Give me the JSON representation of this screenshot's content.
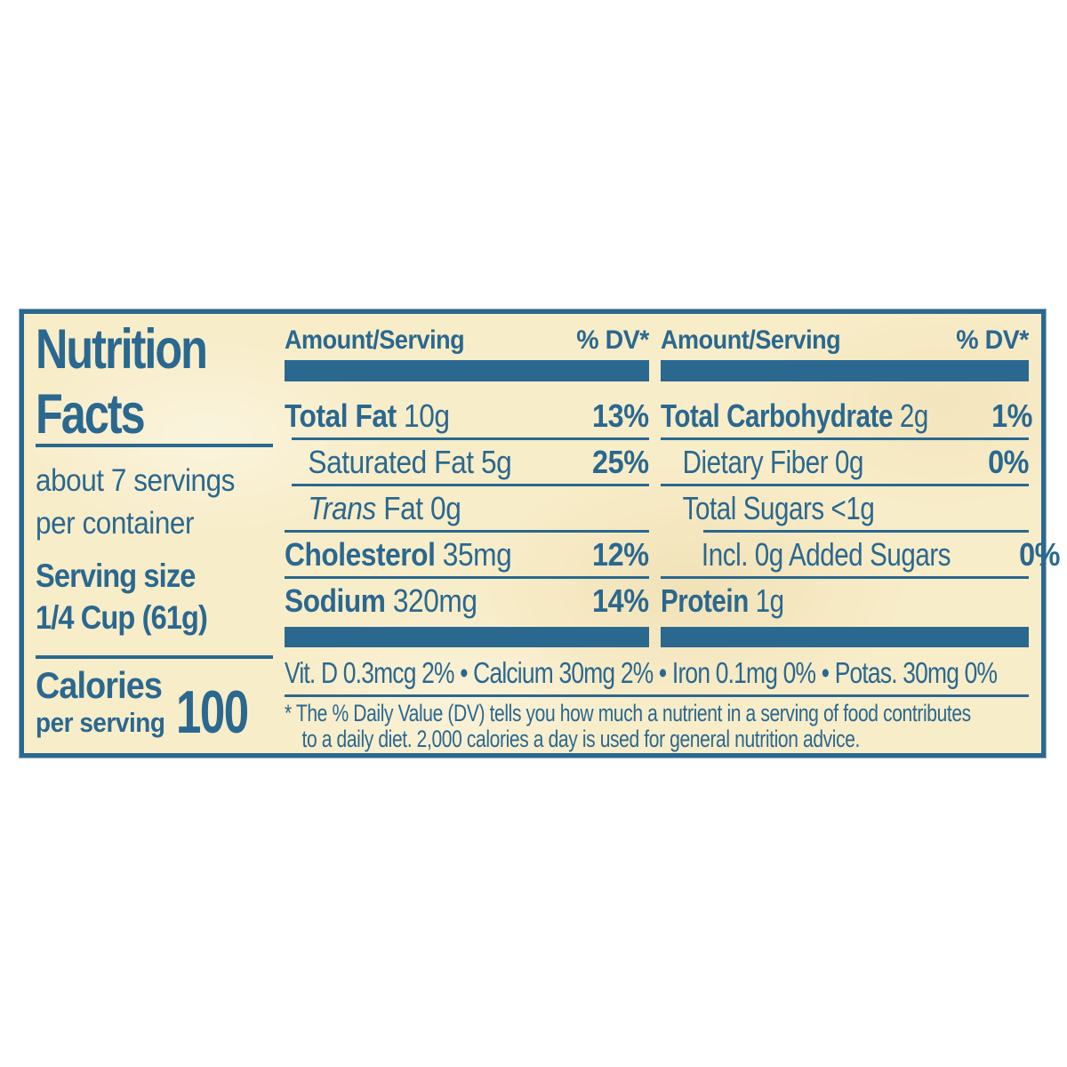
{
  "colors": {
    "ink": "#2a6890",
    "cream": "#f8edc9",
    "page_background": "#ffffff"
  },
  "nutrition_label": {
    "title": {
      "line1": "Nutrition",
      "line2": "Facts"
    },
    "servings": {
      "line1": "about 7 servings",
      "line2": "per container"
    },
    "serving_size": {
      "line1": "Serving size",
      "line2": "1/4 Cup (61g)"
    },
    "calories": {
      "label": "Calories",
      "sublabel": "per serving",
      "value": "100"
    },
    "column_header": {
      "amount": "Amount/Serving",
      "dv": "% DV*"
    },
    "mid_rows": [
      {
        "bold": "Total Fat",
        "rest": " 10g",
        "dv": "13%"
      },
      {
        "bold": "",
        "rest": "Saturated Fat 5g",
        "dv": "25%"
      },
      {
        "italic": "Trans",
        "rest": " Fat 0g",
        "dv": ""
      },
      {
        "bold": "Cholesterol",
        "rest": " 35mg",
        "dv": "12%"
      },
      {
        "bold": "Sodium",
        "rest": " 320mg",
        "dv": "14%"
      }
    ],
    "right_rows": [
      {
        "bold": "Total Carbohydrate",
        "rest": " 2g",
        "dv": "1%"
      },
      {
        "bold": "",
        "rest": "Dietary Fiber 0g",
        "dv": "0%"
      },
      {
        "bold": "",
        "rest": "Total Sugars <1g",
        "dv": ""
      },
      {
        "bold": "",
        "rest": "Incl. 0g Added Sugars",
        "dv": "0%"
      },
      {
        "bold": "Protein",
        "rest": " 1g",
        "dv": ""
      }
    ],
    "micronutrients": "Vit. D 0.3mcg 2% • Calcium 30mg 2% • Iron 0.1mg 0% • Potas. 30mg 0%",
    "footnote": {
      "line1": "* The % Daily Value (DV) tells you how much a nutrient in a serving of food contributes",
      "line2": "to a daily diet. 2,000  calories a day is used for general nutrition advice."
    }
  }
}
